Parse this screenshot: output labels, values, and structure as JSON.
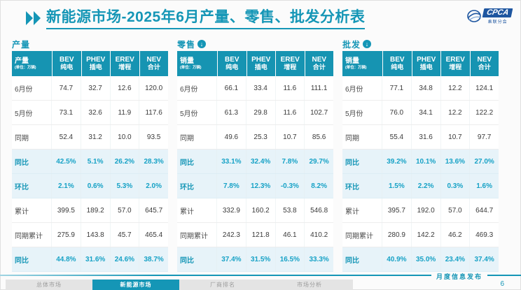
{
  "title": {
    "text": "新能源市场-2025年6月产量、零售、批发分析表"
  },
  "logo": {
    "brand": "CPCA",
    "sub": "乘联分会"
  },
  "colors": {
    "accent_teal": "#1596b6",
    "header_bg": "#1694b2",
    "highlight_row_bg": "#e7f3f9",
    "logo_blue": "#1e56a0"
  },
  "tables": [
    {
      "section_label": "产量",
      "has_down_arrow": false,
      "header": {
        "label": "产量",
        "unit": "(单位：万辆)"
      },
      "columns": [
        {
          "en": "BEV",
          "zh": "纯电"
        },
        {
          "en": "PHEV",
          "zh": "插电"
        },
        {
          "en": "EREV",
          "zh": "增程"
        },
        {
          "en": "NEV",
          "zh": "合计"
        }
      ],
      "rows": [
        {
          "label": "6月份",
          "values": [
            "74.7",
            "32.7",
            "12.6",
            "120.0"
          ],
          "highlight": false
        },
        {
          "label": "5月份",
          "values": [
            "73.1",
            "32.6",
            "11.9",
            "117.6"
          ],
          "highlight": false
        },
        {
          "label": "同期",
          "values": [
            "52.4",
            "31.2",
            "10.0",
            "93.5"
          ],
          "highlight": false
        },
        {
          "label": "同比",
          "values": [
            "42.5%",
            "5.1%",
            "26.2%",
            "28.3%"
          ],
          "highlight": true
        },
        {
          "label": "环比",
          "values": [
            "2.1%",
            "0.6%",
            "5.3%",
            "2.0%"
          ],
          "highlight": true
        },
        {
          "label": "累计",
          "values": [
            "399.5",
            "189.2",
            "57.0",
            "645.7"
          ],
          "highlight": false
        },
        {
          "label": "同期累计",
          "values": [
            "275.9",
            "143.8",
            "45.7",
            "465.4"
          ],
          "highlight": false
        },
        {
          "label": "同比",
          "values": [
            "44.8%",
            "31.6%",
            "24.6%",
            "38.7%"
          ],
          "highlight": true
        }
      ]
    },
    {
      "section_label": "零售",
      "has_down_arrow": true,
      "header": {
        "label": "销量",
        "unit": "(单位：万辆)"
      },
      "columns": [
        {
          "en": "BEV",
          "zh": "纯电"
        },
        {
          "en": "PHEV",
          "zh": "插电"
        },
        {
          "en": "EREV",
          "zh": "增程"
        },
        {
          "en": "NEV",
          "zh": "合计"
        }
      ],
      "rows": [
        {
          "label": "6月份",
          "values": [
            "66.1",
            "33.4",
            "11.6",
            "111.1"
          ],
          "highlight": false
        },
        {
          "label": "5月份",
          "values": [
            "61.3",
            "29.8",
            "11.6",
            "102.7"
          ],
          "highlight": false
        },
        {
          "label": "同期",
          "values": [
            "49.6",
            "25.3",
            "10.7",
            "85.6"
          ],
          "highlight": false
        },
        {
          "label": "同比",
          "values": [
            "33.1%",
            "32.4%",
            "7.8%",
            "29.7%"
          ],
          "highlight": true
        },
        {
          "label": "环比",
          "values": [
            "7.8%",
            "12.3%",
            "-0.3%",
            "8.2%"
          ],
          "highlight": true
        },
        {
          "label": "累计",
          "values": [
            "332.9",
            "160.2",
            "53.8",
            "546.8"
          ],
          "highlight": false
        },
        {
          "label": "同期累计",
          "values": [
            "242.3",
            "121.8",
            "46.1",
            "410.2"
          ],
          "highlight": false
        },
        {
          "label": "同比",
          "values": [
            "37.4%",
            "31.5%",
            "16.5%",
            "33.3%"
          ],
          "highlight": true
        }
      ]
    },
    {
      "section_label": "批发",
      "has_down_arrow": true,
      "header": {
        "label": "销量",
        "unit": "(单位：万辆)"
      },
      "columns": [
        {
          "en": "BEV",
          "zh": "纯电"
        },
        {
          "en": "PHEV",
          "zh": "插电"
        },
        {
          "en": "EREV",
          "zh": "增程"
        },
        {
          "en": "NEV",
          "zh": "合计"
        }
      ],
      "rows": [
        {
          "label": "6月份",
          "values": [
            "77.1",
            "34.8",
            "12.2",
            "124.1"
          ],
          "highlight": false
        },
        {
          "label": "5月份",
          "values": [
            "76.0",
            "34.1",
            "12.2",
            "122.2"
          ],
          "highlight": false
        },
        {
          "label": "同期",
          "values": [
            "55.4",
            "31.6",
            "10.7",
            "97.7"
          ],
          "highlight": false
        },
        {
          "label": "同比",
          "values": [
            "39.2%",
            "10.1%",
            "13.6%",
            "27.0%"
          ],
          "highlight": true
        },
        {
          "label": "环比",
          "values": [
            "1.5%",
            "2.2%",
            "0.3%",
            "1.6%"
          ],
          "highlight": true
        },
        {
          "label": "累计",
          "values": [
            "395.7",
            "192.0",
            "57.0",
            "644.7"
          ],
          "highlight": false
        },
        {
          "label": "同期累计",
          "values": [
            "280.9",
            "142.2",
            "46.2",
            "469.3"
          ],
          "highlight": false
        },
        {
          "label": "同比",
          "values": [
            "40.9%",
            "35.0%",
            "23.4%",
            "37.4%"
          ],
          "highlight": true
        }
      ]
    }
  ],
  "footer": {
    "text": "月度信息发布",
    "page": "6"
  },
  "nav": {
    "tabs": [
      {
        "label": "总体市场",
        "active": false
      },
      {
        "label": "新能源市场",
        "active": true
      },
      {
        "label": "厂商排名",
        "active": false
      },
      {
        "label": "市场分析",
        "active": false
      }
    ]
  }
}
